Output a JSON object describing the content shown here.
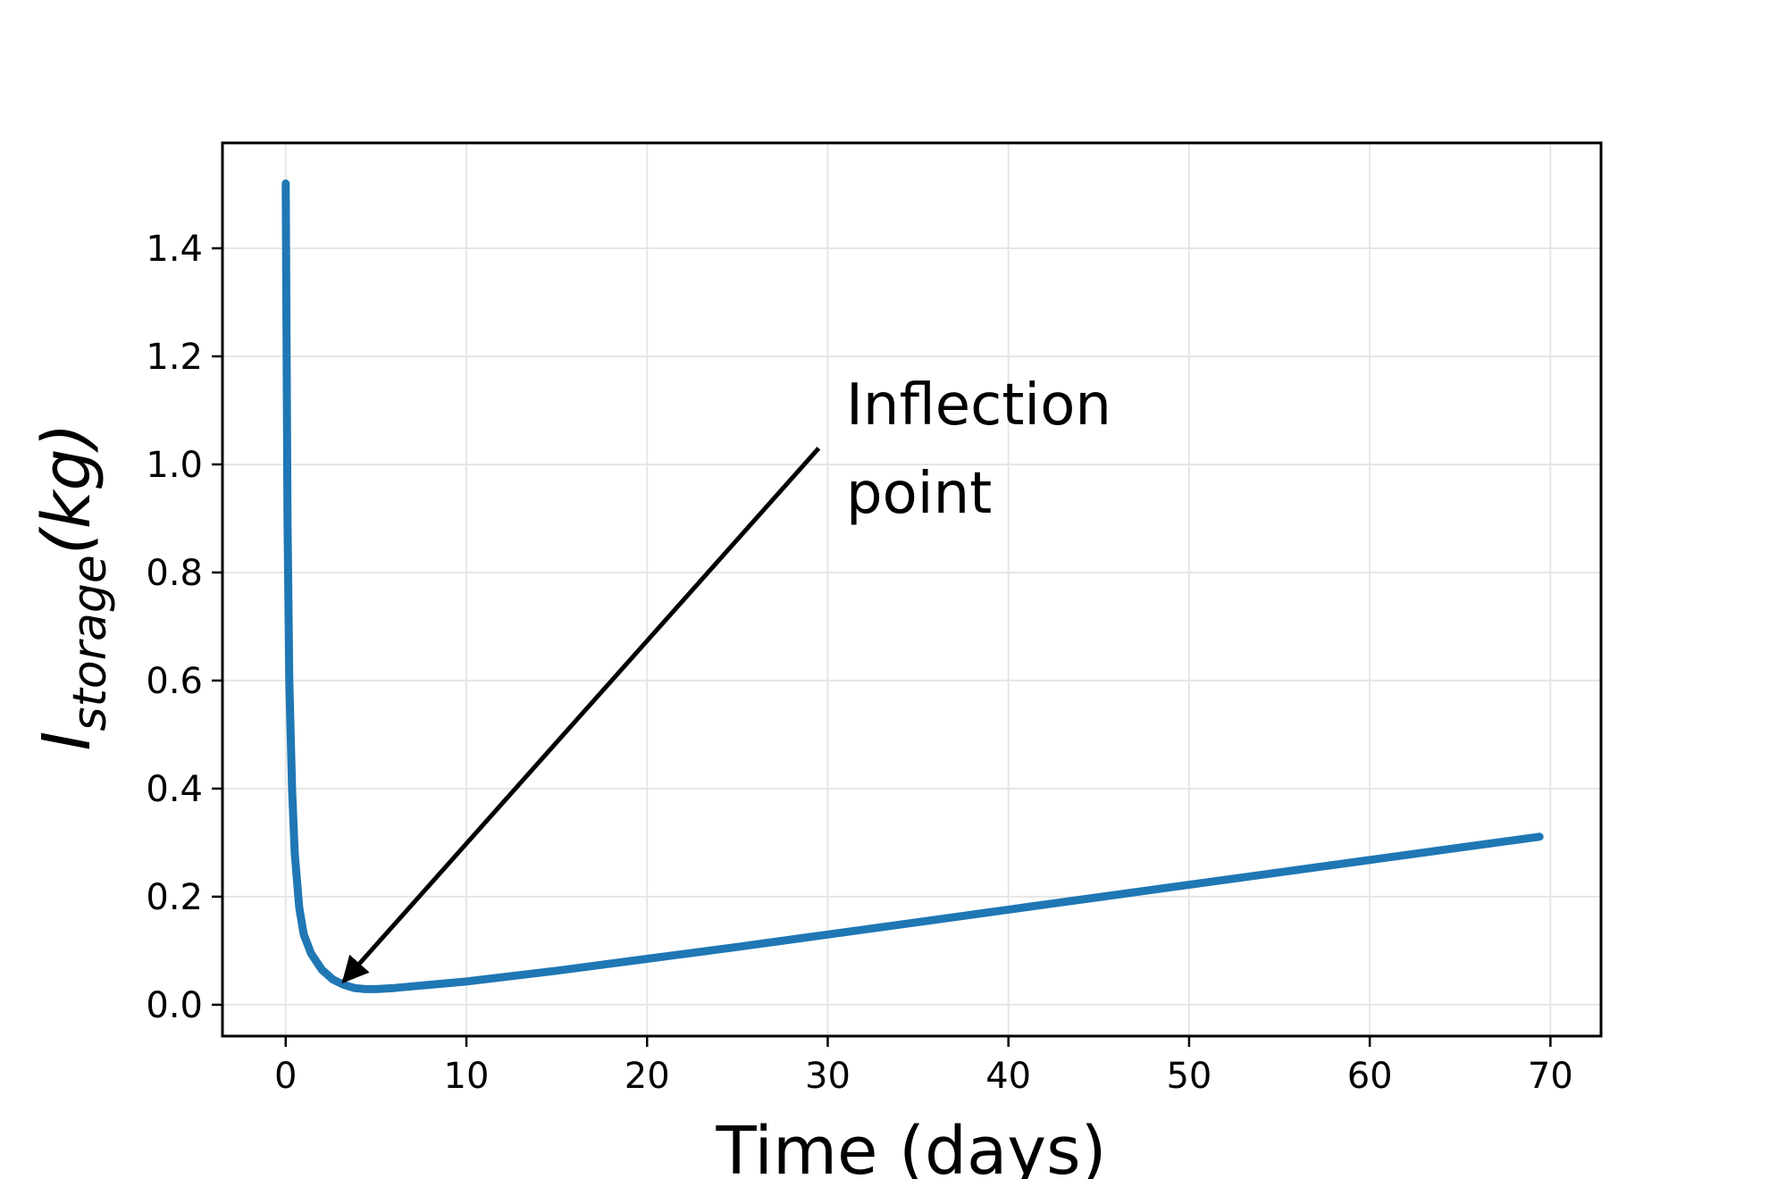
{
  "chart_data": {
    "type": "line",
    "title": "",
    "xlabel": "Time (days)",
    "ylabel": {
      "main": "I",
      "subscript": "storage",
      "unit": "(kg)"
    },
    "xlim": [
      -3.5,
      72.8
    ],
    "ylim": [
      -0.058,
      1.595
    ],
    "xticks": [
      0,
      10,
      20,
      30,
      40,
      50,
      60,
      70
    ],
    "yticks": [
      "0.0",
      "0.2",
      "0.4",
      "0.6",
      "0.8",
      "1.0",
      "1.2",
      "1.4"
    ],
    "grid": true,
    "series": [
      {
        "color": "#1f77b4",
        "x": [
          0,
          0.1,
          0.2,
          0.35,
          0.5,
          0.75,
          1.0,
          1.4,
          2.0,
          2.6,
          3.2,
          3.8,
          4.4,
          5.0,
          6.0,
          7.0,
          8.0,
          10.0,
          15.0,
          20.0,
          25.0,
          30.0,
          35.0,
          40.0,
          45.0,
          50.0,
          55.0,
          60.0,
          65.0,
          69.4
        ],
        "y": [
          1.52,
          0.9,
          0.6,
          0.4,
          0.28,
          0.18,
          0.13,
          0.095,
          0.065,
          0.047,
          0.037,
          0.031,
          0.029,
          0.029,
          0.031,
          0.034,
          0.037,
          0.043,
          0.063,
          0.085,
          0.107,
          0.13,
          0.153,
          0.176,
          0.199,
          0.222,
          0.245,
          0.268,
          0.291,
          0.311
        ]
      }
    ],
    "annotation": {
      "lines": [
        "Inflection",
        "point"
      ],
      "arrow_from": [
        29.5,
        1.03
      ],
      "arrow_to": [
        3.2,
        0.043
      ]
    }
  }
}
